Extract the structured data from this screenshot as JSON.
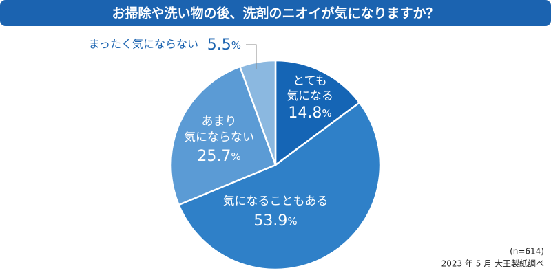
{
  "chart_data": {
    "type": "pie",
    "title": "お掃除や洗い物の後、洗剤のニオイが気になりますか？",
    "categories": [
      "とても\n気になる",
      "気になることもある",
      "あまり\n気にならない",
      "まったく気にならない"
    ],
    "values": [
      14.8,
      53.9,
      25.7,
      5.5
    ],
    "value_labels": [
      "14.8%",
      "53.9%",
      "25.7%",
      "5.5%"
    ],
    "colors": [
      "#1565b5",
      "#2f80c8",
      "#5b9bd5",
      "#8bb8e0"
    ],
    "notes": [
      "(n=614)",
      "2023 年 5 月 大王製紙調べ"
    ]
  }
}
